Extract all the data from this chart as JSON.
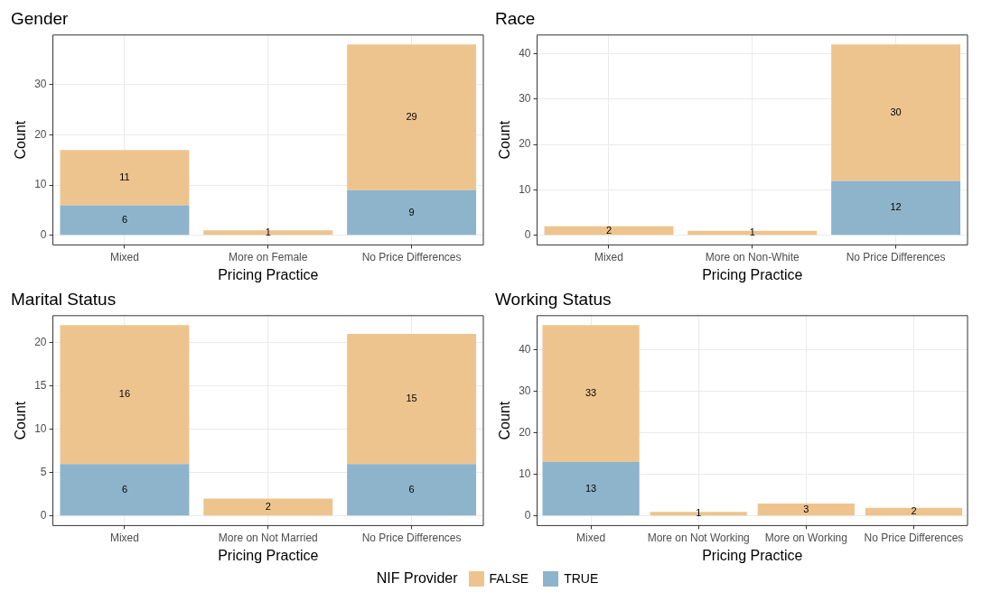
{
  "chart_data": [
    {
      "type": "bar",
      "title": "Gender",
      "xlabel": "Pricing Practice",
      "ylabel": "Count",
      "categories": [
        "Mixed",
        "More on Female",
        "No Price Differences"
      ],
      "stacked": true,
      "data_labels": true,
      "grid": true,
      "legend": "bottom",
      "legend_title": "NIF Provider",
      "ylim": [
        -1.9,
        39.9
      ],
      "yticks": [
        0,
        10,
        20,
        30
      ],
      "series": [
        {
          "name": "TRUE",
          "color": "#8db4cb",
          "values": [
            6,
            null,
            9
          ]
        },
        {
          "name": "FALSE",
          "color": "#eec48e",
          "values": [
            11,
            1,
            29
          ]
        }
      ]
    },
    {
      "type": "bar",
      "title": "Race",
      "xlabel": "Pricing Practice",
      "ylabel": "Count",
      "categories": [
        "Mixed",
        "More on Non-White",
        "No Price Differences"
      ],
      "stacked": true,
      "data_labels": true,
      "grid": true,
      "ylim": [
        -2.1,
        44.1
      ],
      "yticks": [
        0,
        10,
        20,
        30,
        40
      ],
      "series": [
        {
          "color": "#8db4cb",
          "values": [
            null,
            null,
            12
          ]
        },
        {
          "color": "#eec48e",
          "values": [
            2,
            1,
            30
          ]
        }
      ]
    },
    {
      "type": "bar",
      "title": "Marital Status",
      "xlabel": "Pricing Practice",
      "ylabel": "Count",
      "categories": [
        "Mixed",
        "More on Not Married",
        "No Price Differences"
      ],
      "stacked": true,
      "data_labels": true,
      "grid": true,
      "ylim": [
        -1.1,
        23.1
      ],
      "yticks": [
        0,
        5,
        10,
        15,
        20
      ],
      "series": [
        {
          "color": "#8db4cb",
          "values": [
            6,
            null,
            6
          ]
        },
        {
          "color": "#eec48e",
          "values": [
            16,
            2,
            15
          ]
        }
      ]
    },
    {
      "type": "bar",
      "title": "Working Status",
      "xlabel": "Pricing Practice",
      "ylabel": "Count",
      "categories": [
        "Mixed",
        "More on Not Working",
        "More on Working",
        "No Price Differences"
      ],
      "stacked": true,
      "data_labels": true,
      "grid": true,
      "ylim": [
        -2.3,
        48.3
      ],
      "yticks": [
        0,
        10,
        20,
        30,
        40
      ],
      "series": [
        {
          "color": "#8db4cb",
          "values": [
            13,
            null,
            null,
            null
          ]
        },
        {
          "color": "#eec48e",
          "values": [
            33,
            1,
            3,
            2
          ]
        }
      ]
    }
  ]
}
